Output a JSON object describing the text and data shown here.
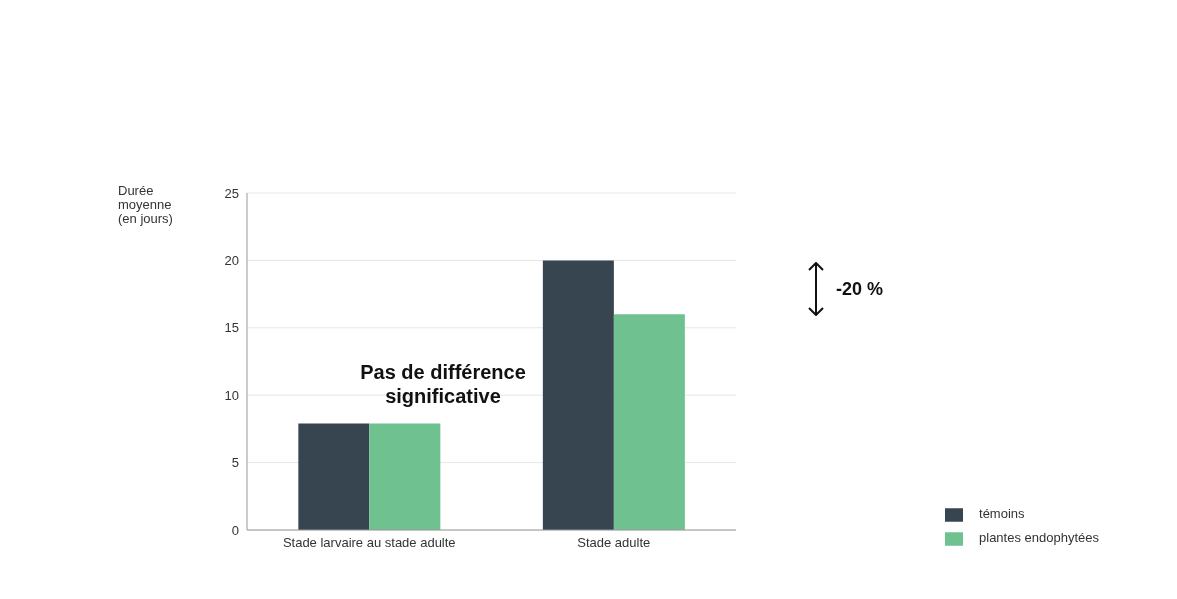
{
  "chart_data": {
    "type": "bar",
    "ylabel": "Durée moyenne (en jours)",
    "categories": [
      "Stade larvaire au stade adulte",
      "Stade adulte"
    ],
    "series": [
      {
        "name": "témoins",
        "color": "#36454f",
        "values": [
          7.9,
          20
        ]
      },
      {
        "name": "plantes endophytées",
        "color": "#6fc190",
        "values": [
          7.9,
          16
        ]
      }
    ],
    "ylim": [
      0,
      25
    ],
    "yticks": [
      0,
      5,
      10,
      15,
      20,
      25
    ],
    "grid": "y",
    "legend": "bottom right",
    "annotations": [
      "Pas de différence significative",
      "-20 %"
    ]
  }
}
